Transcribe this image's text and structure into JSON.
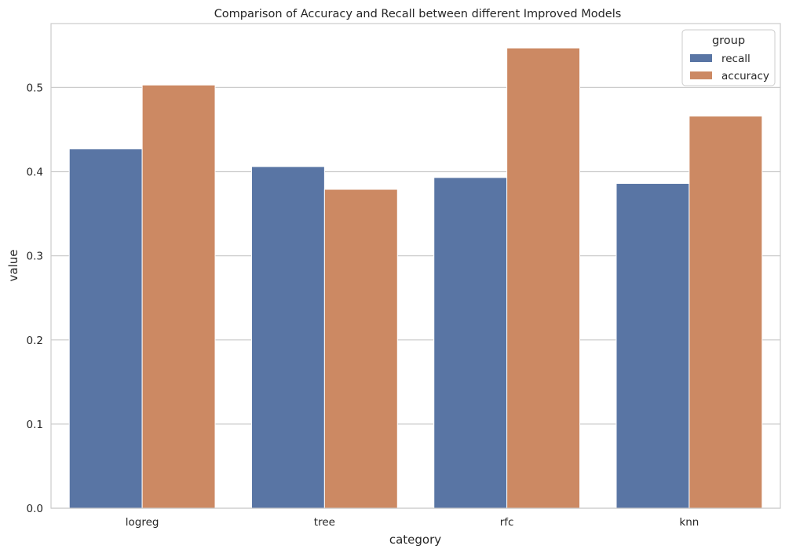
{
  "chart_data": {
    "type": "bar",
    "title": "Comparison of Accuracy and Recall between different Improved Models",
    "xlabel": "category",
    "ylabel": "value",
    "categories": [
      "logreg",
      "tree",
      "rfc",
      "knn"
    ],
    "series": [
      {
        "name": "recall",
        "color": "#5975a4",
        "values": [
          0.427,
          0.406,
          0.393,
          0.386
        ]
      },
      {
        "name": "accuracy",
        "color": "#cc8963",
        "values": [
          0.503,
          0.379,
          0.547,
          0.466
        ]
      }
    ],
    "ylim": [
      0,
      0.576
    ],
    "yticks": [
      0.0,
      0.1,
      0.2,
      0.3,
      0.4,
      0.5
    ],
    "ytick_labels": [
      "0.0",
      "0.1",
      "0.2",
      "0.3",
      "0.4",
      "0.5"
    ],
    "grid": true,
    "legend": {
      "title": "group",
      "placement": "top-right"
    }
  }
}
